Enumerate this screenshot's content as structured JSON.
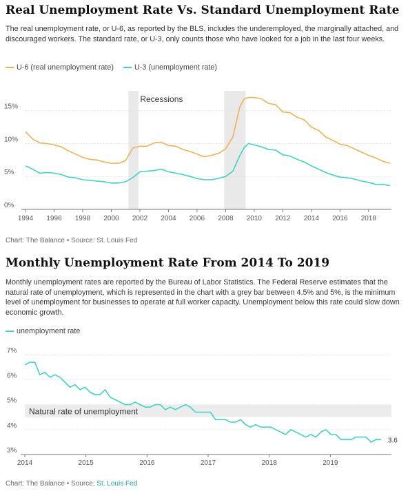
{
  "chart1": {
    "title": "Real Unemployment Rate Vs. Standard Unemployment Rate",
    "description": "The real unemployment rate, or U-6, as reported by the BLS, includes the underemployed, the marginally attached, and discouraged workers. The standard rate, or U-3, only counts those who have looked for a job in the last four weeks.",
    "source": "Chart: The Balance • Source: St. Louis Fed",
    "chart_data": {
      "type": "line",
      "x_ticks": [
        "1994",
        "1996",
        "1998",
        "2000",
        "2002",
        "2004",
        "2006",
        "2008",
        "2010",
        "2012",
        "2014",
        "2016",
        "2018"
      ],
      "y_ticks": [
        "0%",
        "5%",
        "10%",
        "15%"
      ],
      "ylim": [
        0,
        18
      ],
      "xlim": [
        1994,
        2019.6
      ],
      "annotation": "Recessions",
      "recessions": [
        [
          2001.2,
          2001.9
        ],
        [
          2007.9,
          2009.4
        ]
      ],
      "colors": {
        "u6": "#f0b155",
        "u3": "#3ed3c4",
        "recession": "#e9e9e9"
      },
      "series": [
        {
          "name": "U-6 (real unemployment rate)",
          "key": "u6",
          "x": [
            1994,
            1994.5,
            1995,
            1995.5,
            1996,
            1996.5,
            1997,
            1997.5,
            1998,
            1998.5,
            1999,
            1999.5,
            2000,
            2000.5,
            2001,
            2001.5,
            2002,
            2002.5,
            2003,
            2003.5,
            2004,
            2004.5,
            2005,
            2005.5,
            2006,
            2006.5,
            2007,
            2007.5,
            2008,
            2008.5,
            2009,
            2009.3,
            2009.6,
            2010,
            2010.5,
            2011,
            2011.5,
            2012,
            2012.5,
            2013,
            2013.5,
            2014,
            2014.5,
            2015,
            2015.5,
            2016,
            2016.5,
            2017,
            2017.5,
            2018,
            2018.5,
            2019,
            2019.5
          ],
          "y": [
            11.8,
            10.7,
            10.1,
            10.0,
            9.8,
            9.5,
            8.9,
            8.4,
            7.9,
            7.6,
            7.5,
            7.2,
            7.0,
            7.0,
            7.4,
            9.3,
            9.6,
            9.6,
            10.1,
            10.2,
            9.7,
            9.6,
            9.1,
            8.8,
            8.4,
            8.0,
            8.2,
            8.5,
            9.2,
            11.0,
            15.6,
            16.8,
            17.0,
            17.0,
            16.8,
            16.1,
            15.9,
            14.8,
            14.7,
            14.0,
            13.6,
            12.5,
            12.0,
            11.0,
            10.5,
            9.9,
            9.7,
            9.2,
            8.7,
            8.2,
            7.8,
            7.3,
            7.0
          ]
        },
        {
          "name": "U-3 (unemployment rate)",
          "key": "u3",
          "x": [
            1994,
            1994.5,
            1995,
            1995.5,
            1996,
            1996.5,
            1997,
            1997.5,
            1998,
            1998.5,
            1999,
            1999.5,
            2000,
            2000.5,
            2001,
            2001.5,
            2002,
            2002.5,
            2003,
            2003.5,
            2004,
            2004.5,
            2005,
            2005.5,
            2006,
            2006.5,
            2007,
            2007.5,
            2008,
            2008.5,
            2009,
            2009.3,
            2009.6,
            2010,
            2010.5,
            2011,
            2011.5,
            2012,
            2012.5,
            2013,
            2013.5,
            2014,
            2014.5,
            2015,
            2015.5,
            2016,
            2016.5,
            2017,
            2017.5,
            2018,
            2018.5,
            2019,
            2019.5
          ],
          "y": [
            6.6,
            6.1,
            5.5,
            5.6,
            5.5,
            5.3,
            4.9,
            4.8,
            4.5,
            4.4,
            4.3,
            4.2,
            4.0,
            4.0,
            4.2,
            4.8,
            5.7,
            5.8,
            5.9,
            6.1,
            5.7,
            5.5,
            5.3,
            5.0,
            4.7,
            4.5,
            4.5,
            4.7,
            5.0,
            5.8,
            8.2,
            9.4,
            10.0,
            9.8,
            9.5,
            9.1,
            9.0,
            8.3,
            8.1,
            7.6,
            7.2,
            6.6,
            6.1,
            5.6,
            5.2,
            4.9,
            4.8,
            4.6,
            4.3,
            4.1,
            3.8,
            3.8,
            3.6
          ]
        }
      ]
    }
  },
  "chart2": {
    "title": "Monthly Unemployment Rate From 2014 To 2019",
    "description": "Monthly unemployment rates are reported by the Bureau of Labor Statistics. The Federal Reserve estimates that the natural rate of unemployment, which is represented in the chart with a grey bar between 4.5% and 5%, is the minimum level of unemployment for businesses to operate at full worker capacity. Unemployment below this rate could slow down economic growth.",
    "source_prefix": "Chart: The Balance • Source: ",
    "source_link": "St. Louis Fed",
    "chart_data": {
      "type": "line",
      "x_ticks": [
        "2014",
        "2015",
        "2016",
        "2017",
        "2018",
        "2019"
      ],
      "y_ticks": [
        "3%",
        "4%",
        "5%",
        "6%",
        "7%"
      ],
      "ylim": [
        3,
        7.2
      ],
      "xlim": [
        2014,
        2020
      ],
      "band": {
        "from": 4.5,
        "to": 5,
        "label": "Natural rate of unemployment"
      },
      "end_label": "3.6",
      "colors": {
        "line": "#3ed3c4",
        "band": "#ececec"
      },
      "series": [
        {
          "name": "unemployment rate",
          "y": [
            6.6,
            6.7,
            6.7,
            6.2,
            6.3,
            6.1,
            6.2,
            6.1,
            5.9,
            5.7,
            5.8,
            5.6,
            5.7,
            5.5,
            5.4,
            5.4,
            5.6,
            5.3,
            5.2,
            5.1,
            5.0,
            5.0,
            5.1,
            5.0,
            4.9,
            4.9,
            5.0,
            5.0,
            4.8,
            4.9,
            4.8,
            4.9,
            5.0,
            4.9,
            4.7,
            4.7,
            4.7,
            4.7,
            4.4,
            4.4,
            4.4,
            4.3,
            4.3,
            4.4,
            4.2,
            4.1,
            4.2,
            4.1,
            4.1,
            4.1,
            4.0,
            3.9,
            3.8,
            4.0,
            3.9,
            3.8,
            3.7,
            3.8,
            3.7,
            3.9,
            4.0,
            3.8,
            3.8,
            3.6,
            3.6,
            3.6,
            3.7,
            3.7,
            3.7,
            3.5,
            3.6,
            3.6
          ]
        }
      ]
    }
  }
}
